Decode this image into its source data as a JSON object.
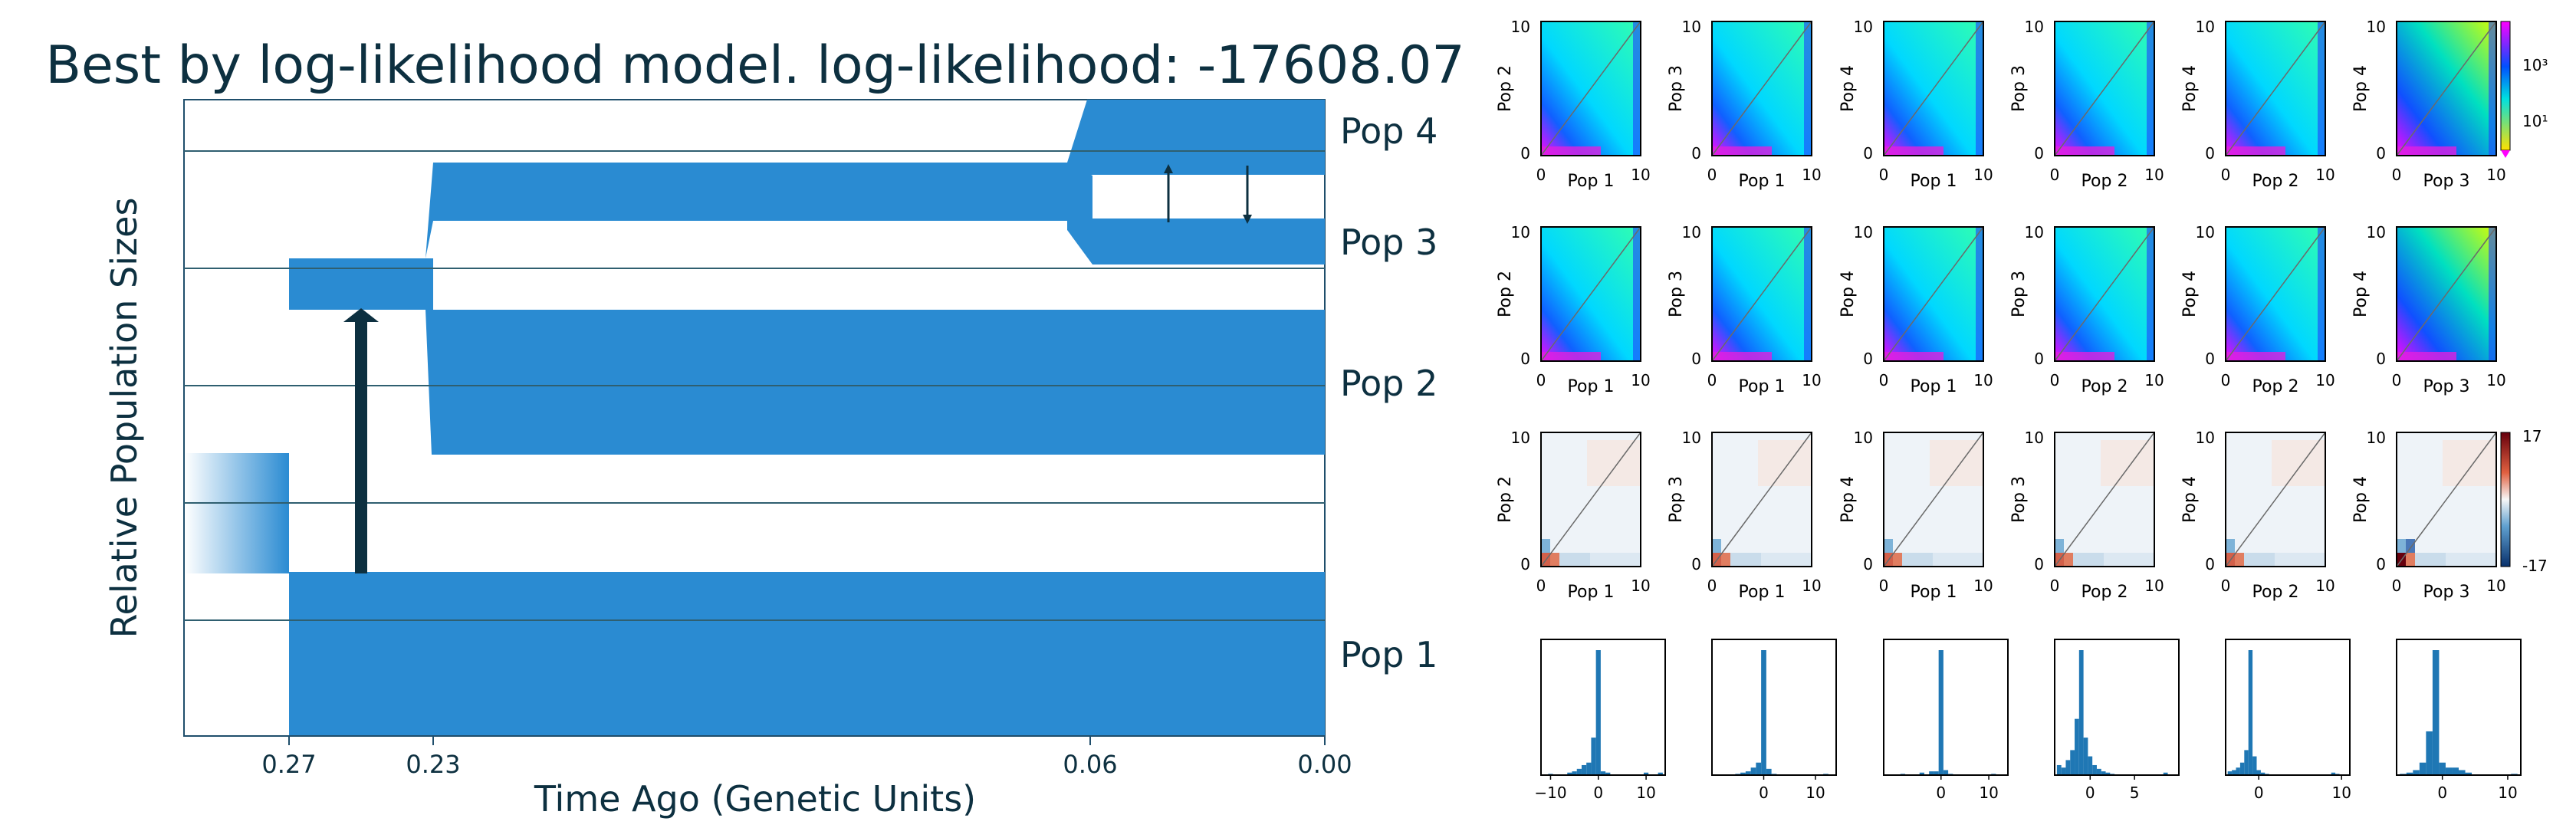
{
  "colors": {
    "pop_fill": "#2a8bd2",
    "arrow": "#0d3040",
    "frame": "#1f4e6b",
    "grid": "#2f5f70",
    "title": "#0d3040",
    "hist": "#1f77b4"
  },
  "demography": {
    "title": "Best by log-likelihood model. log-likelihood: -17608.07",
    "ylabel": "Relative Population Sizes",
    "xlabel": "Time Ago (Genetic Units)",
    "time_ticks": [
      {
        "t": 0.27,
        "label": "0.27"
      },
      {
        "t": 0.23,
        "label": "0.23"
      },
      {
        "t": 0.06,
        "label": "0.06"
      },
      {
        "t": 0.0,
        "label": "0.00"
      }
    ],
    "pop_labels": [
      "Pop 4",
      "Pop 3",
      "Pop 2",
      "Pop 1"
    ],
    "events": [
      {
        "type": "split",
        "time": 0.27,
        "from": "ancestral",
        "into": [
          "Pop 1",
          "ancestral-2"
        ]
      },
      {
        "type": "split",
        "time": 0.23,
        "from": "ancestral-2",
        "into": [
          "Pop 2",
          "ancestral-34"
        ]
      },
      {
        "type": "split",
        "time": 0.06,
        "from": "ancestral-34",
        "into": [
          "Pop 3",
          "Pop 4"
        ]
      },
      {
        "type": "migration",
        "time_range": [
          0.27,
          0.23
        ],
        "from": "Pop 1",
        "to": "ancestral-2"
      },
      {
        "type": "migration",
        "time_range": [
          0.06,
          0.0
        ],
        "between": [
          "Pop 3",
          "Pop 4"
        ]
      }
    ]
  },
  "chart_data": [
    {
      "type": "heatmap",
      "name": "model_sfs",
      "panels": [
        {
          "xlabel": "Pop 1",
          "ylabel": "Pop 2"
        },
        {
          "xlabel": "Pop 1",
          "ylabel": "Pop 3"
        },
        {
          "xlabel": "Pop 1",
          "ylabel": "Pop 4"
        },
        {
          "xlabel": "Pop 2",
          "ylabel": "Pop 3"
        },
        {
          "xlabel": "Pop 2",
          "ylabel": "Pop 4"
        },
        {
          "xlabel": "Pop 3",
          "ylabel": "Pop 4"
        }
      ],
      "xlim": [
        0,
        10
      ],
      "ylim": [
        0,
        10
      ],
      "colorbar": {
        "scale": "log",
        "ticks": [
          "10³",
          "10¹"
        ]
      }
    },
    {
      "type": "heatmap",
      "name": "data_sfs",
      "panels": [
        {
          "xlabel": "Pop 1",
          "ylabel": "Pop 2"
        },
        {
          "xlabel": "Pop 1",
          "ylabel": "Pop 3"
        },
        {
          "xlabel": "Pop 1",
          "ylabel": "Pop 4"
        },
        {
          "xlabel": "Pop 2",
          "ylabel": "Pop 3"
        },
        {
          "xlabel": "Pop 2",
          "ylabel": "Pop 4"
        },
        {
          "xlabel": "Pop 3",
          "ylabel": "Pop 4"
        }
      ],
      "xlim": [
        0,
        10
      ],
      "ylim": [
        0,
        10
      ]
    },
    {
      "type": "heatmap",
      "name": "residuals",
      "panels": [
        {
          "xlabel": "Pop 1",
          "ylabel": "Pop 2"
        },
        {
          "xlabel": "Pop 1",
          "ylabel": "Pop 3"
        },
        {
          "xlabel": "Pop 1",
          "ylabel": "Pop 4"
        },
        {
          "xlabel": "Pop 2",
          "ylabel": "Pop 3"
        },
        {
          "xlabel": "Pop 2",
          "ylabel": "Pop 4"
        },
        {
          "xlabel": "Pop 3",
          "ylabel": "Pop 4"
        }
      ],
      "xlim": [
        0,
        10
      ],
      "ylim": [
        0,
        10
      ],
      "colorbar": {
        "scale": "linear",
        "range": [
          -17,
          17
        ],
        "ticks": [
          "17",
          "-17"
        ]
      }
    },
    {
      "type": "bar",
      "name": "residual_histograms",
      "panels": [
        {
          "xlim": [
            -12,
            14
          ],
          "ticks": [
            -10,
            0,
            10
          ],
          "tick_labels": [
            "−10",
            "0",
            "10"
          ],
          "x": [
            -10,
            -9,
            -8,
            -7,
            -6,
            -5,
            -4,
            -3,
            -2,
            -1,
            0,
            1,
            2,
            3,
            4,
            5,
            6,
            7,
            8,
            9,
            10,
            11,
            12,
            13
          ],
          "values": [
            0.01,
            0,
            0,
            0,
            0.02,
            0.03,
            0.05,
            0.08,
            0.1,
            0.3,
            1.0,
            0.03,
            0.02,
            0,
            0,
            0,
            0,
            0,
            0,
            0,
            0.02,
            0,
            0,
            0.02
          ]
        },
        {
          "xlim": [
            -10,
            14
          ],
          "ticks": [
            0,
            10
          ],
          "tick_labels": [
            "0",
            "10"
          ],
          "x": [
            -6,
            -5,
            -4,
            -3,
            -2,
            -1,
            0,
            1,
            2,
            3,
            4,
            5,
            6,
            7,
            8,
            9,
            10,
            11,
            12
          ],
          "values": [
            0,
            0.01,
            0.02,
            0.03,
            0.06,
            0.1,
            1.0,
            0.05,
            0.01,
            0,
            0,
            0,
            0,
            0,
            0,
            0,
            0,
            0,
            0.01
          ]
        },
        {
          "xlim": [
            -12,
            14
          ],
          "ticks": [
            0,
            10
          ],
          "tick_labels": [
            "0",
            "10"
          ],
          "x": [
            -8,
            -7,
            -6,
            -5,
            -4,
            -3,
            -2,
            -1,
            0,
            1,
            2,
            3,
            4,
            5,
            6,
            7,
            8,
            9,
            10,
            11
          ],
          "values": [
            0.01,
            0,
            0,
            0,
            0.02,
            0,
            0.03,
            0.03,
            1.0,
            0.04,
            0.01,
            0,
            0,
            0,
            0,
            0,
            0,
            0,
            0,
            0.01
          ]
        },
        {
          "xlim": [
            -4,
            10
          ],
          "ticks": [
            0,
            5
          ],
          "tick_labels": [
            "0",
            "5"
          ],
          "x": [
            -3.5,
            -3,
            -2.5,
            -2,
            -1.5,
            -1,
            -0.5,
            0,
            0.5,
            1,
            1.5,
            2,
            2.5,
            3,
            3.5,
            4,
            4.5,
            5,
            5.5,
            6,
            6.5,
            7,
            7.5,
            8,
            8.5
          ],
          "values": [
            0.08,
            0.06,
            0.12,
            0.2,
            0.45,
            1.0,
            0.3,
            0.15,
            0.08,
            0.05,
            0.03,
            0.02,
            0.01,
            0,
            0,
            0,
            0,
            0,
            0,
            0,
            0,
            0,
            0,
            0,
            0.02
          ]
        },
        {
          "xlim": [
            -4,
            11
          ],
          "ticks": [
            0,
            10
          ],
          "tick_labels": [
            "0",
            "10"
          ],
          "x": [
            -3.5,
            -3,
            -2.5,
            -2,
            -1.5,
            -1,
            -0.5,
            0,
            0.5,
            1,
            1.5,
            2,
            2.5,
            3,
            3.5,
            4,
            4.5,
            5,
            5.5,
            6,
            6.5,
            7,
            7.5,
            8,
            8.5,
            9,
            9.5
          ],
          "values": [
            0.03,
            0.04,
            0.06,
            0.1,
            0.2,
            1.0,
            0.15,
            0.04,
            0.02,
            0.01,
            0,
            0,
            0,
            0,
            0,
            0,
            0,
            0,
            0,
            0,
            0,
            0,
            0,
            0,
            0,
            0.02,
            0.01
          ]
        },
        {
          "xlim": [
            -7,
            12
          ],
          "ticks": [
            0,
            10
          ],
          "tick_labels": [
            "0",
            "10"
          ],
          "x": [
            -6,
            -5,
            -4,
            -3,
            -2,
            -1,
            0,
            1,
            2,
            3,
            4,
            5,
            6,
            7,
            8,
            9,
            10,
            11
          ],
          "values": [
            0.01,
            0.02,
            0.04,
            0.1,
            0.35,
            1.0,
            0.1,
            0.06,
            0.06,
            0.04,
            0.02,
            0,
            0,
            0,
            0,
            0,
            0,
            0.01
          ]
        }
      ]
    }
  ]
}
